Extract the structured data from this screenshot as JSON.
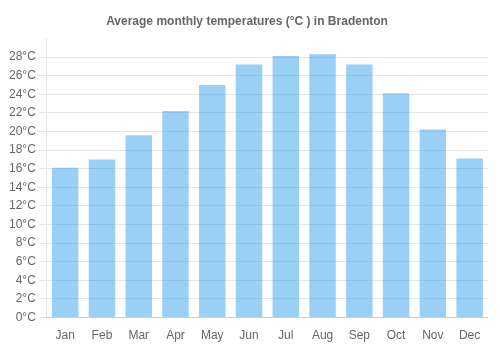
{
  "chart_data": {
    "type": "bar",
    "title": "Average monthly temperatures (°C ) in Bradenton",
    "categories": [
      "Jan",
      "Feb",
      "Mar",
      "Apr",
      "May",
      "Jun",
      "Jul",
      "Aug",
      "Sep",
      "Oct",
      "Nov",
      "Dec"
    ],
    "values": [
      16.1,
      17.0,
      19.6,
      22.2,
      25.0,
      27.2,
      28.1,
      28.3,
      27.2,
      24.1,
      20.2,
      17.1
    ],
    "ylim": [
      0,
      30
    ],
    "yticks": [
      {
        "value": 0,
        "label": "0°C"
      },
      {
        "value": 2,
        "label": "2°C"
      },
      {
        "value": 4,
        "label": "4°C"
      },
      {
        "value": 6,
        "label": "6°C"
      },
      {
        "value": 8,
        "label": "8°C"
      },
      {
        "value": 10,
        "label": "10°C"
      },
      {
        "value": 12,
        "label": "12°C"
      },
      {
        "value": 14,
        "label": "14°C"
      },
      {
        "value": 16,
        "label": "16°C"
      },
      {
        "value": 18,
        "label": "18°C"
      },
      {
        "value": 20,
        "label": "20°C"
      },
      {
        "value": 22,
        "label": "22°C"
      },
      {
        "value": 24,
        "label": "24°C"
      },
      {
        "value": 26,
        "label": "26°C"
      },
      {
        "value": 28,
        "label": "28°C"
      }
    ],
    "grid": true
  }
}
